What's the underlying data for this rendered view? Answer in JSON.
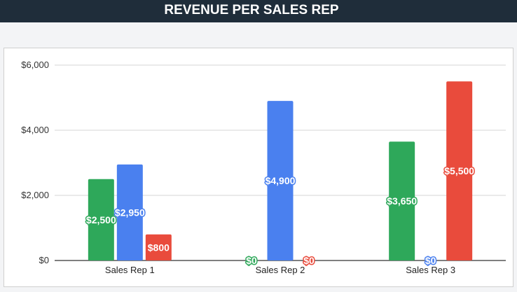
{
  "header": {
    "title": "REVENUE PER SALES REP"
  },
  "colors": {
    "header_bg": "#1f2d3a",
    "green": "#2ea85a",
    "blue": "#4a80ef",
    "red": "#e94b3c",
    "grid": "#d6d6d6"
  },
  "chart_data": {
    "type": "bar",
    "title": "",
    "xlabel": "",
    "ylabel": "",
    "ylim": [
      0,
      6000
    ],
    "yticks": [
      0,
      2000,
      4000,
      6000
    ],
    "ytick_labels": [
      "$0",
      "$2,000",
      "$4,000",
      "$6,000"
    ],
    "grid": true,
    "legend": "none",
    "categories": [
      "Sales Rep 1",
      "Sales Rep 2",
      "Sales Rep 3"
    ],
    "series": [
      {
        "color": "#2ea85a",
        "values": [
          2500,
          0,
          3650
        ],
        "labels": [
          "$2,500",
          "$0",
          "$3,650"
        ]
      },
      {
        "color": "#4a80ef",
        "values": [
          2950,
          4900,
          0
        ],
        "labels": [
          "$2,950",
          "$4,900",
          "$0"
        ]
      },
      {
        "color": "#e94b3c",
        "values": [
          800,
          0,
          5500
        ],
        "labels": [
          "$800",
          "$0",
          "$5,500"
        ]
      }
    ]
  }
}
